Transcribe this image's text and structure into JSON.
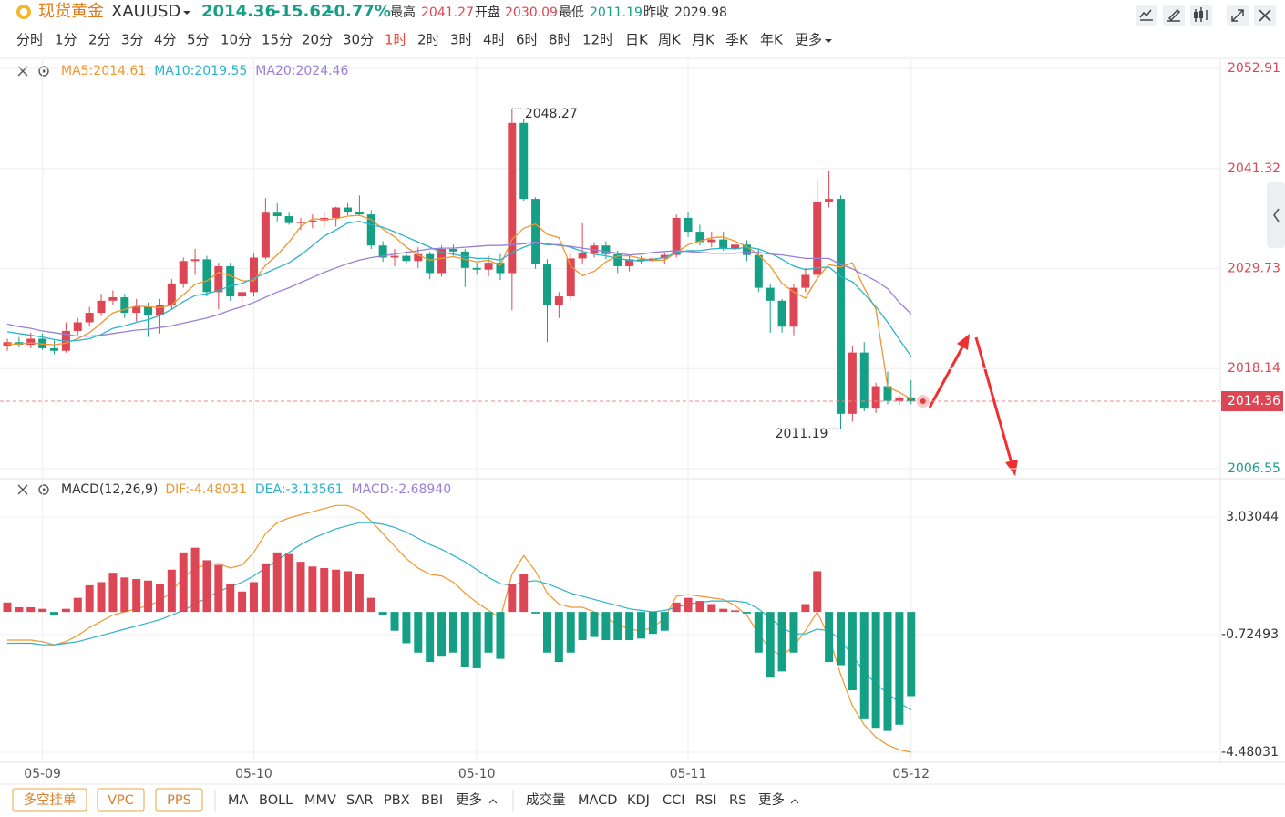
{
  "header": {
    "name": "现货黄金",
    "symbol": "XAUUSD",
    "price": "2014.36",
    "change": "-15.62",
    "change_pct": "-0.77%",
    "high_label": "最高",
    "high": "2041.27",
    "open_label": "开盘",
    "open": "2030.09",
    "low_label": "最低",
    "low": "2011.19",
    "prev_label": "昨收",
    "prev": "2029.98"
  },
  "periods": [
    "分时",
    "1分",
    "2分",
    "3分",
    "4分",
    "5分",
    "10分",
    "15分",
    "20分",
    "30分",
    "1时",
    "2时",
    "3时",
    "4时",
    "6时",
    "8时",
    "12时",
    "日K",
    "周K",
    "月K",
    "季K",
    "年K",
    "更多"
  ],
  "active_period": 10,
  "chart_data": [
    {
      "type": "candlestick",
      "up_color": "#dd4654",
      "down_color": "#15a086",
      "categories": [
        null,
        null,
        null,
        "05-09",
        null,
        null,
        null,
        null,
        null,
        null,
        null,
        null,
        null,
        null,
        null,
        null,
        null,
        null,
        null,
        null,
        null,
        "05-10",
        null,
        null,
        null,
        null,
        null,
        null,
        null,
        null,
        null,
        null,
        null,
        null,
        null,
        null,
        null,
        null,
        null,
        null,
        "05-10",
        null,
        null,
        null,
        null,
        null,
        null,
        null,
        null,
        null,
        null,
        null,
        null,
        null,
        null,
        null,
        null,
        null,
        "05-11",
        null,
        null,
        null,
        null,
        null,
        null,
        null,
        null,
        null,
        null,
        null,
        null,
        null,
        null,
        null,
        null,
        null,
        null,
        "05-12"
      ],
      "ohlc": [
        [
          2020.8,
          2021.6,
          2020.2,
          2021.2
        ],
        [
          2021.2,
          2021.8,
          2020.6,
          2020.9
        ],
        [
          2020.9,
          2022.3,
          2020.5,
          2021.6
        ],
        [
          2021.6,
          2022.2,
          2020.3,
          2020.5
        ],
        [
          2020.5,
          2021.4,
          2019.8,
          2020.2
        ],
        [
          2020.2,
          2023.5,
          2020.0,
          2022.5
        ],
        [
          2022.5,
          2024.0,
          2022.0,
          2023.5
        ],
        [
          2023.5,
          2025.3,
          2023.0,
          2024.6
        ],
        [
          2024.6,
          2026.8,
          2024.2,
          2026.0
        ],
        [
          2026.0,
          2027.2,
          2025.5,
          2026.4
        ],
        [
          2026.4,
          2026.8,
          2024.0,
          2024.6
        ],
        [
          2024.6,
          2026.2,
          2023.6,
          2025.3
        ],
        [
          2025.3,
          2025.8,
          2021.8,
          2024.3
        ],
        [
          2024.3,
          2026.2,
          2022.2,
          2025.5
        ],
        [
          2025.5,
          2028.5,
          2025.0,
          2028.0
        ],
        [
          2028.0,
          2031.0,
          2027.5,
          2030.6
        ],
        [
          2030.6,
          2032.0,
          2029.0,
          2030.8
        ],
        [
          2030.8,
          2031.2,
          2026.5,
          2027.0
        ],
        [
          2027.0,
          2030.4,
          2025.0,
          2030.0
        ],
        [
          2030.0,
          2030.4,
          2026.0,
          2026.5
        ],
        [
          2026.5,
          2027.8,
          2025.0,
          2027.0
        ],
        [
          2027.0,
          2031.5,
          2026.5,
          2031.0
        ],
        [
          2031.0,
          2037.9,
          2030.8,
          2036.2
        ],
        [
          2036.2,
          2037.3,
          2035.2,
          2035.8
        ],
        [
          2035.8,
          2036.2,
          2034.8,
          2035.0
        ],
        [
          2035.0,
          2035.6,
          2034.2,
          2035.1
        ],
        [
          2035.1,
          2036.0,
          2034.4,
          2035.3
        ],
        [
          2035.3,
          2036.3,
          2034.5,
          2035.6
        ],
        [
          2035.6,
          2036.9,
          2034.6,
          2036.8
        ],
        [
          2036.8,
          2037.3,
          2035.9,
          2036.3
        ],
        [
          2036.3,
          2038.2,
          2035.8,
          2036.0
        ],
        [
          2036.0,
          2036.5,
          2032.0,
          2032.4
        ],
        [
          2032.4,
          2032.9,
          2030.5,
          2031.0
        ],
        [
          2031.0,
          2032.0,
          2030.0,
          2031.2
        ],
        [
          2031.2,
          2031.8,
          2030.3,
          2030.6
        ],
        [
          2030.6,
          2032.2,
          2029.8,
          2031.4
        ],
        [
          2031.4,
          2031.7,
          2028.5,
          2029.2
        ],
        [
          2029.2,
          2032.4,
          2028.8,
          2032.0
        ],
        [
          2032.0,
          2032.5,
          2031.2,
          2031.7
        ],
        [
          2031.7,
          2032.0,
          2027.6,
          2029.8
        ],
        [
          2029.8,
          2030.4,
          2029.0,
          2029.6
        ],
        [
          2029.6,
          2031.2,
          2028.8,
          2030.4
        ],
        [
          2030.4,
          2031.4,
          2028.4,
          2029.2
        ],
        [
          2029.2,
          2048.27,
          2024.9,
          2046.6
        ],
        [
          2046.6,
          2047.0,
          2037.6,
          2037.8
        ],
        [
          2037.8,
          2038.0,
          2029.7,
          2030.2
        ],
        [
          2030.2,
          2030.8,
          2021.2,
          2025.5
        ],
        [
          2025.5,
          2027.0,
          2024.0,
          2026.5
        ],
        [
          2026.5,
          2031.5,
          2026.0,
          2030.9
        ],
        [
          2030.9,
          2035.0,
          2030.2,
          2031.5
        ],
        [
          2031.5,
          2032.8,
          2031.0,
          2032.4
        ],
        [
          2032.4,
          2032.9,
          2030.8,
          2031.4
        ],
        [
          2031.4,
          2031.8,
          2029.2,
          2030.0
        ],
        [
          2030.0,
          2031.3,
          2029.4,
          2030.8
        ],
        [
          2030.8,
          2031.2,
          2030.2,
          2030.6
        ],
        [
          2030.6,
          2031.2,
          2030.0,
          2030.9
        ],
        [
          2030.9,
          2031.6,
          2030.2,
          2031.3
        ],
        [
          2031.3,
          2036.0,
          2031.0,
          2035.6
        ],
        [
          2035.6,
          2036.3,
          2033.4,
          2034.0
        ],
        [
          2034.0,
          2034.8,
          2032.4,
          2032.8
        ],
        [
          2032.8,
          2034.0,
          2032.2,
          2033.1
        ],
        [
          2033.1,
          2034.0,
          2031.8,
          2032.0
        ],
        [
          2032.0,
          2033.0,
          2031.0,
          2032.5
        ],
        [
          2032.5,
          2033.0,
          2030.6,
          2031.3
        ],
        [
          2031.3,
          2032.0,
          2027.0,
          2027.5
        ],
        [
          2027.5,
          2028.0,
          2022.3,
          2026.0
        ],
        [
          2026.0,
          2026.2,
          2022.3,
          2023.0
        ],
        [
          2023.0,
          2028.0,
          2022.0,
          2027.5
        ],
        [
          2027.5,
          2029.8,
          2027.0,
          2029.0
        ],
        [
          2029.0,
          2040.0,
          2028.5,
          2037.5
        ],
        [
          2037.5,
          2041.0,
          2036.8,
          2037.8
        ],
        [
          2037.8,
          2038.2,
          2011.19,
          2012.9
        ],
        [
          2012.9,
          2020.8,
          2012.0,
          2020.0
        ],
        [
          2020.0,
          2021.2,
          2013.2,
          2013.5
        ],
        [
          2013.5,
          2016.5,
          2013.0,
          2016.1
        ],
        [
          2016.1,
          2017.8,
          2014.0,
          2014.4
        ],
        [
          2014.4,
          2015.0,
          2013.9,
          2014.8
        ],
        [
          2014.8,
          2016.8,
          2014.0,
          2014.36
        ]
      ],
      "series": [
        {
          "name": "MA5:2014.61",
          "color": "#f0962e",
          "values": [
            2021.0,
            2021.0,
            2021.1,
            2021.0,
            2020.9,
            2021.1,
            2021.6,
            2022.3,
            2023.4,
            2024.6,
            2025.0,
            2025.4,
            2025.3,
            2025.2,
            2025.5,
            2026.7,
            2027.9,
            2028.3,
            2029.3,
            2028.9,
            2028.3,
            2028.3,
            2030.1,
            2031.3,
            2032.8,
            2034.6,
            2035.5,
            2035.4,
            2035.5,
            2035.8,
            2035.9,
            2035.4,
            2034.3,
            2033.4,
            2032.2,
            2031.3,
            2030.7,
            2030.9,
            2031.1,
            2030.8,
            2030.5,
            2030.7,
            2030.1,
            2033.1,
            2034.4,
            2034.9,
            2033.7,
            2033.3,
            2030.0,
            2028.9,
            2029.4,
            2030.5,
            2031.2,
            2031.2,
            2030.9,
            2030.7,
            2030.7,
            2031.6,
            2032.5,
            2032.9,
            2033.3,
            2033.4,
            2032.9,
            2032.3,
            2031.3,
            2030.0,
            2028.0,
            2027.0,
            2026.3,
            2028.6,
            2030.2,
            2029.9,
            2030.4,
            2027.5,
            2025.0,
            2016.0,
            2015.4,
            2014.61
          ]
        },
        {
          "name": "MA10:2019.55",
          "color": "#2bb3c8",
          "values": [
            2022.4,
            2022.2,
            2022.0,
            2021.8,
            2021.5,
            2021.3,
            2021.4,
            2021.6,
            2022.1,
            2022.8,
            2023.1,
            2023.5,
            2023.8,
            2024.3,
            2025.0,
            2025.9,
            2026.6,
            2026.8,
            2027.2,
            2027.7,
            2028.0,
            2028.6,
            2029.2,
            2029.8,
            2030.4,
            2031.3,
            2032.4,
            2033.5,
            2034.2,
            2035.0,
            2035.2,
            2034.8,
            2034.5,
            2034.0,
            2033.4,
            2032.8,
            2032.2,
            2031.6,
            2031.4,
            2031.1,
            2030.9,
            2030.9,
            2030.7,
            2031.6,
            2032.2,
            2032.7,
            2032.5,
            2032.5,
            2032.2,
            2031.7,
            2031.4,
            2031.2,
            2030.9,
            2030.7,
            2030.6,
            2030.8,
            2031.0,
            2031.6,
            2031.8,
            2031.8,
            2032.0,
            2032.1,
            2032.0,
            2032.2,
            2032.0,
            2031.5,
            2030.8,
            2030.0,
            2029.6,
            2029.8,
            2029.9,
            2028.8,
            2028.2,
            2026.8,
            2025.3,
            2023.5,
            2021.5,
            2019.55
          ]
        },
        {
          "name": "MA20:2024.46",
          "color": "#9a7fd6",
          "values": [
            2023.3,
            2023.0,
            2022.8,
            2022.5,
            2022.3,
            2022.1,
            2021.9,
            2021.9,
            2022.0,
            2022.2,
            2022.4,
            2022.6,
            2022.7,
            2022.9,
            2023.1,
            2023.4,
            2023.7,
            2024.0,
            2024.4,
            2024.9,
            2025.3,
            2025.8,
            2026.4,
            2027.0,
            2027.5,
            2028.1,
            2028.7,
            2029.3,
            2029.8,
            2030.3,
            2030.7,
            2031.0,
            2031.2,
            2031.4,
            2031.6,
            2031.8,
            2032.0,
            2032.1,
            2032.1,
            2032.2,
            2032.3,
            2032.4,
            2032.4,
            2032.5,
            2032.6,
            2032.8,
            2032.6,
            2032.4,
            2032.3,
            2032.1,
            2031.9,
            2031.7,
            2031.5,
            2031.3,
            2031.4,
            2031.6,
            2031.7,
            2031.8,
            2031.7,
            2031.6,
            2031.5,
            2031.5,
            2031.5,
            2031.6,
            2031.6,
            2031.4,
            2031.3,
            2031.1,
            2030.9,
            2030.9,
            2030.9,
            2030.2,
            2029.7,
            2029.0,
            2028.3,
            2027.4,
            2025.8,
            2024.46
          ]
        }
      ],
      "max_label": 2048.27,
      "min_label": 2011.19,
      "last_price": 2014.36,
      "ylim": [
        2005.49,
        2053.97
      ],
      "yticks": [
        2052.91,
        2041.32,
        2029.73,
        2018.14,
        2006.55
      ],
      "grid": true
    },
    {
      "type": "macd",
      "title": "MACD(12,26,9)",
      "series": [
        {
          "name": "DIF:-4.48031",
          "color": "#f0962e",
          "kind": "line",
          "values": [
            -0.9,
            -0.9,
            -0.9,
            -0.95,
            -1.05,
            -0.95,
            -0.75,
            -0.5,
            -0.3,
            -0.1,
            0.0,
            0.1,
            0.2,
            0.35,
            0.65,
            1.1,
            1.4,
            1.5,
            1.55,
            1.4,
            1.5,
            1.9,
            2.5,
            2.85,
            3.0,
            3.1,
            3.2,
            3.3,
            3.4,
            3.4,
            3.25,
            2.9,
            2.5,
            2.1,
            1.7,
            1.4,
            1.2,
            1.15,
            0.95,
            0.6,
            0.3,
            0.05,
            -0.2,
            1.2,
            1.8,
            1.3,
            0.6,
            0.25,
            0.15,
            0.15,
            0.0,
            -0.2,
            -0.4,
            -0.55,
            -0.6,
            -0.5,
            -0.2,
            0.5,
            0.55,
            0.5,
            0.45,
            0.4,
            0.2,
            -0.1,
            -0.7,
            -1.2,
            -1.4,
            -1.1,
            -0.6,
            0.0,
            -0.8,
            -2.0,
            -3.0,
            -3.6,
            -4.0,
            -4.25,
            -4.4,
            -4.48031
          ]
        },
        {
          "name": "DEA:-3.13561",
          "color": "#2bb3c8",
          "kind": "line",
          "values": [
            -1.0,
            -1.0,
            -1.0,
            -1.05,
            -1.05,
            -1.0,
            -0.95,
            -0.85,
            -0.75,
            -0.65,
            -0.55,
            -0.45,
            -0.35,
            -0.25,
            -0.1,
            0.05,
            0.25,
            0.45,
            0.65,
            0.8,
            0.95,
            1.15,
            1.4,
            1.65,
            1.9,
            2.15,
            2.35,
            2.5,
            2.65,
            2.75,
            2.85,
            2.85,
            2.8,
            2.7,
            2.55,
            2.35,
            2.15,
            2.0,
            1.8,
            1.6,
            1.35,
            1.1,
            0.9,
            0.85,
            0.95,
            1.0,
            0.9,
            0.75,
            0.6,
            0.5,
            0.4,
            0.3,
            0.2,
            0.1,
            0.05,
            0.0,
            0.05,
            0.15,
            0.25,
            0.3,
            0.35,
            0.35,
            0.35,
            0.3,
            0.1,
            -0.2,
            -0.5,
            -0.7,
            -0.7,
            -0.55,
            -0.6,
            -0.9,
            -1.4,
            -1.9,
            -2.3,
            -2.6,
            -2.9,
            -3.13561
          ]
        },
        {
          "name": "MACD:-2.68940",
          "color": "#9a7fd6",
          "kind": "bar",
          "up_color": "#dd4654",
          "down_color": "#15a086",
          "values": [
            0.3,
            0.15,
            0.15,
            0.1,
            -0.1,
            0.1,
            0.45,
            0.85,
            0.95,
            1.25,
            1.1,
            1.05,
            1.0,
            0.9,
            1.35,
            1.9,
            2.05,
            1.65,
            1.5,
            0.9,
            0.65,
            0.95,
            1.55,
            1.9,
            1.85,
            1.6,
            1.45,
            1.4,
            1.35,
            1.3,
            1.2,
            0.45,
            -0.1,
            -0.6,
            -1.0,
            -1.3,
            -1.6,
            -1.4,
            -1.3,
            -1.75,
            -1.8,
            -1.3,
            -1.5,
            0.9,
            1.2,
            -0.05,
            -1.3,
            -1.6,
            -1.3,
            -0.9,
            -0.8,
            -0.9,
            -0.9,
            -0.9,
            -0.85,
            -0.7,
            -0.6,
            0.3,
            0.45,
            0.35,
            0.25,
            0.1,
            0.05,
            -0.05,
            -1.3,
            -2.1,
            -1.9,
            -1.3,
            0.25,
            1.3,
            -1.6,
            -1.7,
            -2.5,
            -3.4,
            -3.7,
            -3.8,
            -3.6,
            -2.6894
          ]
        }
      ],
      "ylim": [
        -4.771,
        4.195
      ],
      "yticks": [
        3.03044,
        -0.72493,
        -4.48031
      ]
    }
  ],
  "footer": {
    "buttons": [
      "多空挂单",
      "VPC",
      "PPS"
    ],
    "main_indicators": [
      "MA",
      "BOLL",
      "MMV",
      "SAR",
      "PBX",
      "BBI",
      "更多"
    ],
    "sub_indicators": [
      "成交量",
      "MACD",
      "KDJ",
      "CCI",
      "RSI",
      "RS",
      "更多"
    ]
  }
}
